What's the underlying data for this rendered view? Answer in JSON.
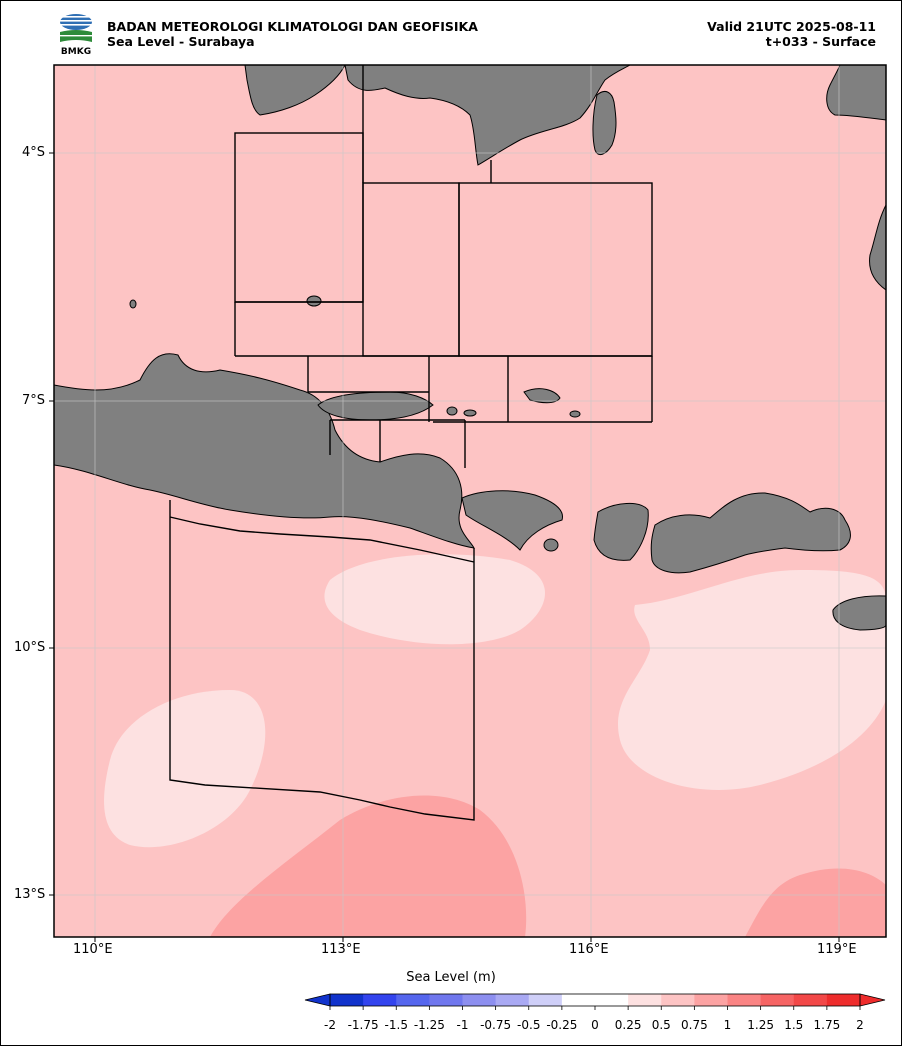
{
  "header": {
    "agency": "BADAN METEOROLOGI KLIMATOLOGI DAN GEOFISIKA",
    "product": "Sea Level - Surabaya",
    "valid": "Valid 21UTC 2025-08-11",
    "forecast": "t+033 - Surface",
    "logo_text": "BMKG"
  },
  "map": {
    "x_ticks": [
      "110°E",
      "113°E",
      "116°E",
      "119°E"
    ],
    "y_ticks": [
      "4°S",
      "7°S",
      "10°S",
      "13°S"
    ],
    "land_color": "#808080",
    "sea_color": "#fdc4c4"
  },
  "colorbar": {
    "title": "Sea Level (m)",
    "labels": [
      "-2",
      "-1.75",
      "-1.5",
      "-1.25",
      "-1",
      "-0.75",
      "-0.5",
      "-0.25",
      "0",
      "0.25",
      "0.5",
      "0.75",
      "1",
      "1.25",
      "1.5",
      "1.75",
      "2"
    ],
    "colors": [
      "#1133cc",
      "#3344ee",
      "#5566ee",
      "#7077ee",
      "#8d8ff0",
      "#a9a9f3",
      "#cfcff8",
      "#ffffff",
      "#ffffff",
      "#fde1e1",
      "#fdc4c4",
      "#fca3a3",
      "#fa8484",
      "#f66464",
      "#f24848",
      "#ee2c2c"
    ]
  }
}
